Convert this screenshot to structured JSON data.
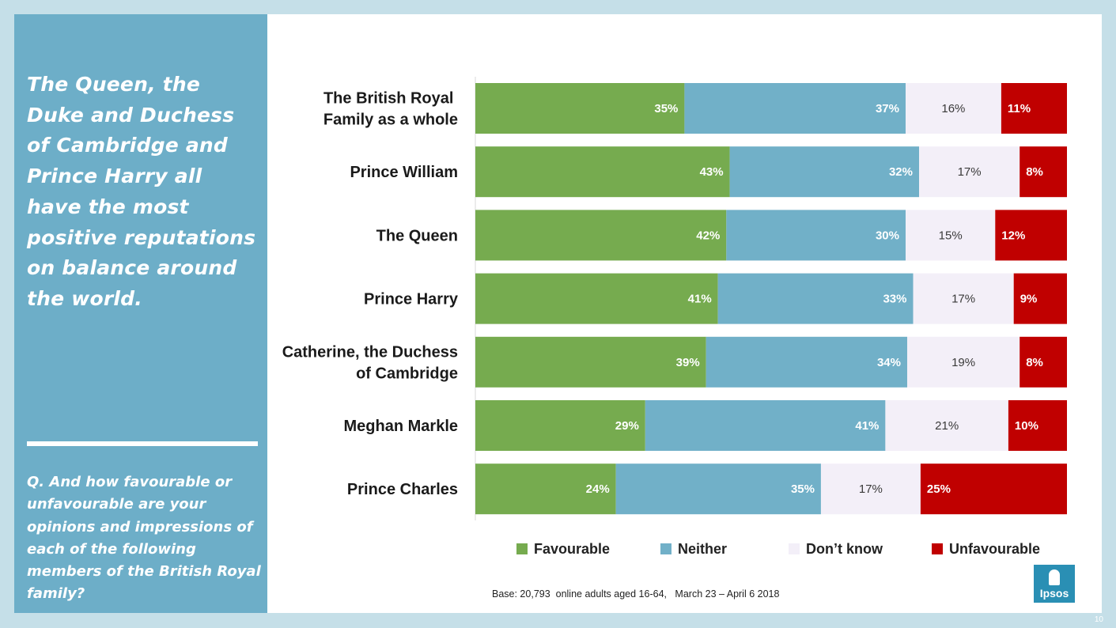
{
  "sidebar": {
    "headline": "The Queen, the Duke and Duchess of Cambridge and Prince Harry all have the most positive reputations on balance around the world.",
    "question": "Q. And how favourable or unfavourable are your opinions and impressions of each of the following members of the British Royal family?"
  },
  "chart_data": {
    "type": "bar",
    "orientation": "horizontal",
    "stacked": true,
    "categories": [
      [
        "The British Royal ",
        "Family as a whole"
      ],
      [
        "Prince William"
      ],
      [
        "The Queen"
      ],
      [
        "Prince Harry"
      ],
      [
        "Catherine, the Duchess",
        "of Cambridge"
      ],
      [
        "Meghan Markle"
      ],
      [
        "Prince Charles"
      ]
    ],
    "series": [
      {
        "name": "Favourable",
        "color": "#76ab4f",
        "values": [
          35,
          43,
          42,
          41,
          39,
          29,
          24
        ],
        "labels": [
          "35%",
          "43%",
          "42%",
          "41%",
          "39%",
          "29%",
          "24%"
        ]
      },
      {
        "name": "Neither",
        "color": "#71b0c8",
        "values": [
          37,
          32,
          30,
          33,
          34,
          41,
          35
        ],
        "labels": [
          "37%",
          "32%",
          "30%",
          "33%",
          "34%",
          "41%",
          "35%"
        ]
      },
      {
        "name": "Don’t know",
        "color": "#f3eff8",
        "values": [
          16,
          17,
          15,
          17,
          19,
          21,
          17
        ],
        "labels": [
          "16%",
          "17%",
          "15%",
          "17%",
          "19%",
          "21%",
          "17%"
        ]
      },
      {
        "name": "Unfavourable",
        "color": "#c00000",
        "values": [
          11,
          8,
          12,
          9,
          8,
          10,
          25
        ],
        "labels": [
          "11%",
          "8%",
          "12%",
          "9%",
          "8%",
          "10%",
          "25%"
        ]
      }
    ],
    "legend_position": "bottom",
    "grid": false
  },
  "footer": {
    "base_note": "Base: 20,793  online adults aged 16-64,   March 23 – April 6 2018",
    "logo_text": "Ipsos",
    "page_number": "10"
  }
}
